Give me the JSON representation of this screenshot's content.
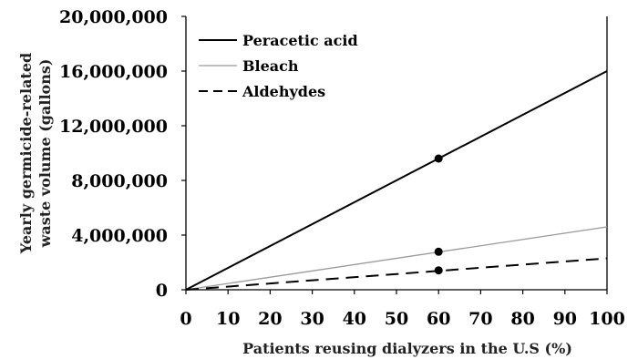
{
  "chart_data": {
    "type": "line",
    "xlabel": "Patients reusing dialyzers in the U.S (%)",
    "ylabel_lines": [
      "Yearly germicide-related",
      "waste volume (gallons)"
    ],
    "xlim": [
      0,
      100
    ],
    "ylim": [
      0,
      20000000
    ],
    "x_ticks": [
      0,
      10,
      20,
      30,
      40,
      50,
      60,
      70,
      80,
      90,
      100
    ],
    "y_ticks": [
      0,
      4000000,
      8000000,
      12000000,
      16000000,
      20000000
    ],
    "y_tick_labels": [
      "0",
      "4,000,000",
      "8,000,000",
      "12,000,000",
      "16,000,000",
      "20,000,000"
    ],
    "legend_position": "top-left",
    "grid": false,
    "series": [
      {
        "name": "Peracetic acid",
        "color": "#000000",
        "dash": "solid",
        "x": [
          0,
          100
        ],
        "y": [
          0,
          16000000
        ]
      },
      {
        "name": "Bleach",
        "color": "#9a9a9a",
        "dash": "solid",
        "x": [
          0,
          100
        ],
        "y": [
          0,
          4600000
        ]
      },
      {
        "name": "Aldehydes",
        "color": "#000000",
        "dash": "dashed",
        "x": [
          0,
          100
        ],
        "y": [
          0,
          2300000
        ]
      }
    ],
    "markers": [
      {
        "x": 60,
        "y": 9600000
      },
      {
        "x": 60,
        "y": 2780000
      },
      {
        "x": 60,
        "y": 1420000
      }
    ]
  }
}
